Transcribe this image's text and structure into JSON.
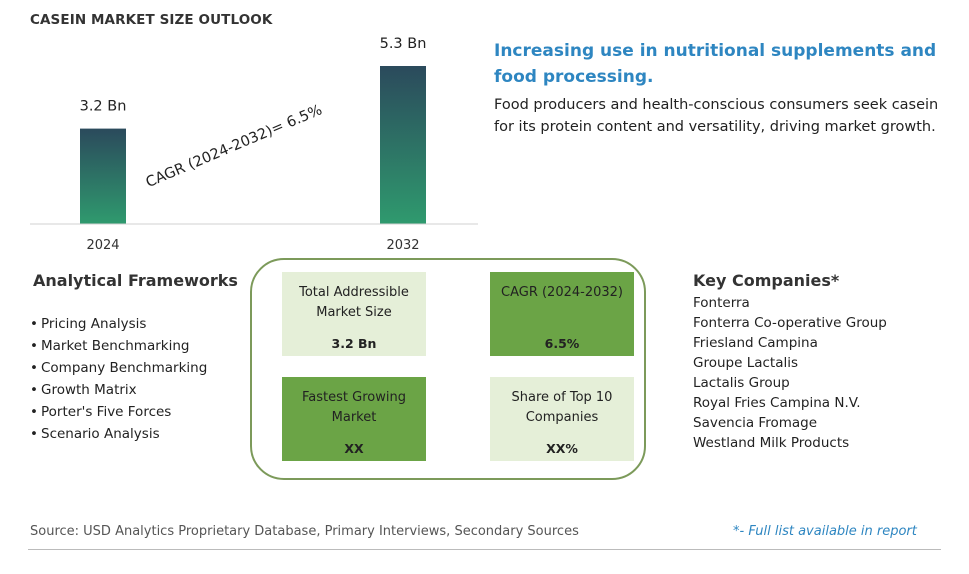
{
  "title": "CASEIN MARKET SIZE OUTLOOK",
  "chart_data": {
    "type": "bar",
    "categories": [
      "2024",
      "2032"
    ],
    "values": [
      3.2,
      5.3
    ],
    "data_labels": [
      "3.2 Bn",
      "5.3 Bn"
    ],
    "unit": "Bn",
    "ylim": [
      0,
      5.3
    ],
    "grid": false,
    "annotation": "CAGR (2024-2032)=  6.5%",
    "bar_color_top": "#2b4a5c",
    "bar_color_bottom": "#2f9a6e"
  },
  "headline": "Increasing use in nutritional supplements and food processing.",
  "description": "Food producers and health-conscious consumers seek casein for its protein content and versatility, driving market growth.",
  "frameworks": {
    "title": "Analytical Frameworks",
    "items": [
      "Pricing Analysis",
      "Market Benchmarking",
      "Company Benchmarking",
      "Growth Matrix",
      "Porter's Five Forces",
      "Scenario Analysis"
    ]
  },
  "metrics": {
    "tam": {
      "label": "Total Addressible Market Size",
      "value": "3.2 Bn"
    },
    "cagr": {
      "label": "CAGR (2024-2032)",
      "value": "6.5%"
    },
    "fastest": {
      "label": "Fastest Growing Market",
      "value": "XX"
    },
    "share": {
      "label": "Share of Top 10 Companies",
      "value": "XX%"
    }
  },
  "companies": {
    "title": "Key Companies*",
    "items": [
      "Fonterra",
      "Fonterra Co-operative Group",
      "Friesland Campina",
      "Groupe Lactalis",
      "Lactalis Group",
      "Royal Fries Campina N.V.",
      "Savencia Fromage",
      "Westland Milk Products"
    ]
  },
  "source": "Source: USD Analytics Proprietary Database, Primary Interviews, Secondary Sources",
  "footnote": "*- Full list available in report"
}
